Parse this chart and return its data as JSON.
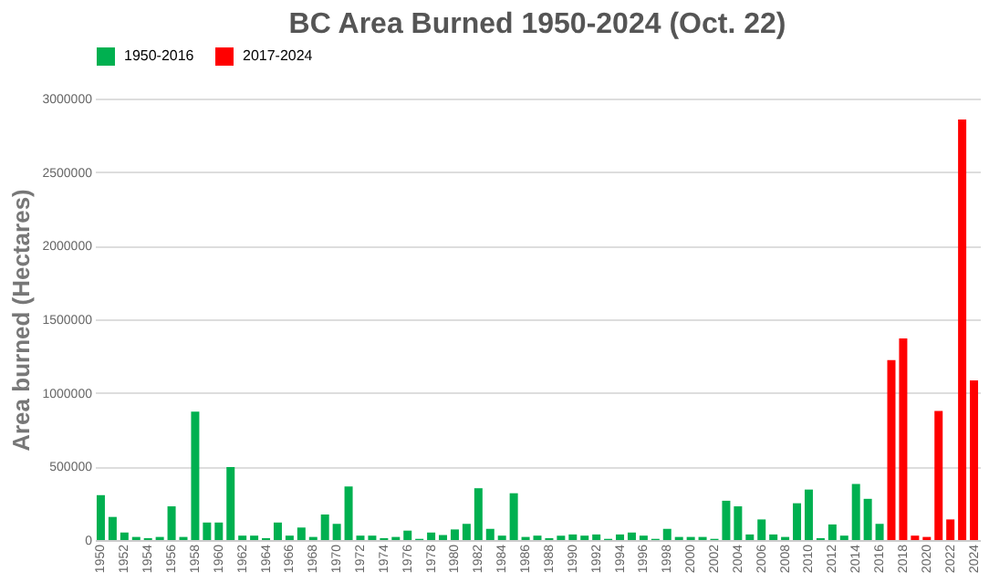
{
  "chart_data": {
    "type": "bar",
    "title": "BC Area Burned 1950-2024 (Oct. 22)",
    "ylabel": "Area burned (Hectares)",
    "categories": [
      "1950",
      null,
      "1952",
      null,
      "1954",
      null,
      "1956",
      null,
      "1958",
      null,
      "1960",
      null,
      "1962",
      null,
      "1964",
      null,
      "1966",
      null,
      "1968",
      null,
      "1970",
      null,
      "1972",
      null,
      "1974",
      null,
      "1976",
      null,
      "1978",
      null,
      "1980",
      null,
      "1982",
      null,
      "1984",
      null,
      "1986",
      null,
      "1988",
      null,
      "1990",
      null,
      "1992",
      null,
      "1994",
      null,
      "1996",
      null,
      "1998",
      null,
      "2000",
      null,
      "2002",
      null,
      "2004",
      null,
      "2006",
      null,
      "2008",
      null,
      "2010",
      null,
      "2012",
      null,
      "2014",
      null,
      "2016",
      null,
      "2018",
      null,
      "2020",
      null,
      "2022",
      null,
      "2024"
    ],
    "series": [
      {
        "name": "1950-2016",
        "color": "#00b050",
        "values": [
          305000,
          157000,
          51000,
          21000,
          13000,
          21000,
          229000,
          21000,
          873000,
          119000,
          119000,
          496000,
          30000,
          30000,
          13000,
          119000,
          30000,
          85000,
          21000,
          174000,
          110000,
          364000,
          30000,
          30000,
          13000,
          21000,
          64000,
          8000,
          51000,
          34000,
          72000,
          110000,
          352000,
          76000,
          30000,
          318000,
          21000,
          30000,
          13000,
          30000,
          38000,
          30000,
          38000,
          8000,
          38000,
          51000,
          30000,
          8000,
          76000,
          21000,
          21000,
          21000,
          8000,
          267000,
          229000,
          38000,
          140000,
          38000,
          21000,
          250000,
          343000,
          13000,
          106000,
          30000,
          381000,
          280000,
          110000,
          null,
          null,
          null,
          null,
          null,
          null,
          null,
          null
        ]
      },
      {
        "name": "2017-2024",
        "color": "#ff0000",
        "values": [
          null,
          null,
          null,
          null,
          null,
          null,
          null,
          null,
          null,
          null,
          null,
          null,
          null,
          null,
          null,
          null,
          null,
          null,
          null,
          null,
          null,
          null,
          null,
          null,
          null,
          null,
          null,
          null,
          null,
          null,
          null,
          null,
          null,
          null,
          null,
          null,
          null,
          null,
          null,
          null,
          null,
          null,
          null,
          null,
          null,
          null,
          null,
          null,
          null,
          null,
          null,
          null,
          null,
          null,
          null,
          null,
          null,
          null,
          null,
          null,
          null,
          null,
          null,
          null,
          null,
          null,
          null,
          1223000,
          1370000,
          30000,
          21000,
          877000,
          140000,
          2857000,
          1084000
        ]
      }
    ],
    "ylim": [
      0,
      3000000
    ],
    "yticks": [
      0,
      500000,
      1000000,
      1500000,
      2000000,
      2500000,
      3000000
    ],
    "grid": "y",
    "legend": "top"
  }
}
